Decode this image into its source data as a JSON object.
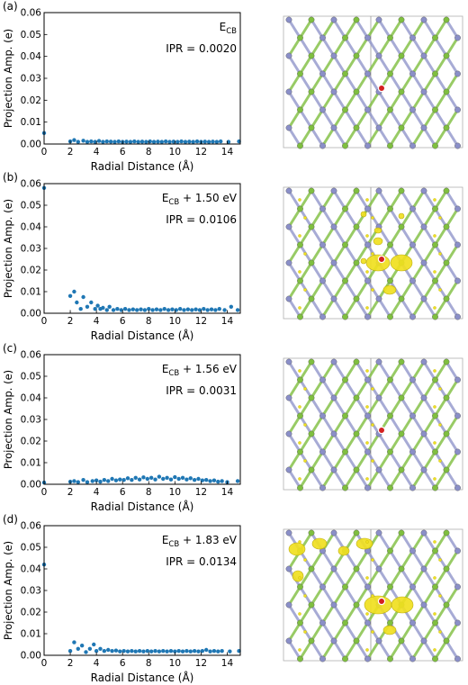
{
  "figure": {
    "panels": [
      {
        "letter": "(a)",
        "energy_main": "E",
        "energy_sub": "CB",
        "energy_suffix": "",
        "ipr": "IPR = 0.0020"
      },
      {
        "letter": "(b)",
        "energy_main": "E",
        "energy_sub": "CB",
        "energy_suffix": " + 1.50 eV",
        "ipr": "IPR = 0.0106"
      },
      {
        "letter": "(c)",
        "energy_main": "E",
        "energy_sub": "CB",
        "energy_suffix": " + 1.56 eV",
        "ipr": "IPR = 0.0031"
      },
      {
        "letter": "(d)",
        "energy_main": "E",
        "energy_sub": "CB",
        "energy_suffix": " + 1.83 eV",
        "ipr": "IPR = 0.0134"
      }
    ],
    "xlabel": "Radial Distance (Å)",
    "ylabel": "Projection Amp. (e)",
    "colors": {
      "points": "#1f77b4",
      "si": "#7fbf3f",
      "n": "#8a8fc8",
      "isosurface": "#f0e020",
      "defect": "#d42020"
    }
  },
  "chart_data": [
    {
      "type": "scatter",
      "panel": "(a)",
      "xlim": [
        0,
        15
      ],
      "ylim": [
        0,
        0.06
      ],
      "xticks": [
        0,
        2,
        4,
        6,
        8,
        10,
        12,
        14
      ],
      "yticks": [
        0.0,
        0.01,
        0.02,
        0.03,
        0.04,
        0.05,
        0.06
      ],
      "x": [
        0.0,
        2.0,
        2.3,
        2.6,
        3.0,
        3.3,
        3.6,
        3.9,
        4.2,
        4.5,
        4.8,
        5.1,
        5.4,
        5.7,
        6.0,
        6.3,
        6.6,
        6.9,
        7.2,
        7.5,
        7.8,
        8.1,
        8.4,
        8.7,
        9.0,
        9.3,
        9.6,
        9.9,
        10.2,
        10.5,
        10.8,
        11.1,
        11.4,
        11.7,
        12.0,
        12.3,
        12.6,
        12.9,
        13.2,
        13.5,
        14.1,
        14.9
      ],
      "y": [
        0.005,
        0.0012,
        0.0018,
        0.001,
        0.0015,
        0.001,
        0.0012,
        0.001,
        0.0014,
        0.001,
        0.0012,
        0.0011,
        0.001,
        0.0012,
        0.001,
        0.0011,
        0.001,
        0.0012,
        0.001,
        0.0011,
        0.001,
        0.0012,
        0.001,
        0.0011,
        0.001,
        0.0012,
        0.001,
        0.0011,
        0.001,
        0.0012,
        0.001,
        0.0011,
        0.001,
        0.0012,
        0.001,
        0.0011,
        0.001,
        0.0011,
        0.001,
        0.0012,
        0.001,
        0.0012
      ]
    },
    {
      "type": "scatter",
      "panel": "(b)",
      "xlim": [
        0,
        15
      ],
      "ylim": [
        0,
        0.06
      ],
      "xticks": [
        0,
        2,
        4,
        6,
        8,
        10,
        12,
        14
      ],
      "yticks": [
        0.0,
        0.01,
        0.02,
        0.03,
        0.04,
        0.05,
        0.06
      ],
      "x": [
        0.0,
        2.0,
        2.3,
        2.5,
        2.8,
        3.0,
        3.3,
        3.6,
        3.9,
        4.1,
        4.3,
        4.5,
        4.8,
        5.0,
        5.3,
        5.6,
        5.9,
        6.2,
        6.5,
        6.8,
        7.1,
        7.4,
        7.7,
        8.0,
        8.3,
        8.6,
        8.9,
        9.2,
        9.5,
        9.8,
        10.1,
        10.4,
        10.7,
        11.0,
        11.3,
        11.6,
        11.9,
        12.2,
        12.5,
        12.8,
        13.1,
        13.4,
        13.8,
        14.3,
        14.8
      ],
      "y": [
        0.058,
        0.008,
        0.01,
        0.005,
        0.002,
        0.0075,
        0.003,
        0.005,
        0.002,
        0.0035,
        0.002,
        0.0025,
        0.0015,
        0.003,
        0.0015,
        0.002,
        0.0015,
        0.002,
        0.0015,
        0.0018,
        0.0015,
        0.0018,
        0.0015,
        0.002,
        0.0015,
        0.0018,
        0.0015,
        0.002,
        0.0015,
        0.0018,
        0.0015,
        0.002,
        0.0015,
        0.0018,
        0.0015,
        0.0018,
        0.0015,
        0.002,
        0.0015,
        0.0018,
        0.0015,
        0.002,
        0.0015,
        0.003,
        0.0015
      ]
    },
    {
      "type": "scatter",
      "panel": "(c)",
      "xlim": [
        0,
        15
      ],
      "ylim": [
        0,
        0.06
      ],
      "xticks": [
        0,
        2,
        4,
        6,
        8,
        10,
        12,
        14
      ],
      "yticks": [
        0.0,
        0.01,
        0.02,
        0.03,
        0.04,
        0.05,
        0.06
      ],
      "x": [
        0.0,
        2.0,
        2.3,
        2.6,
        3.0,
        3.3,
        3.7,
        4.0,
        4.3,
        4.6,
        4.9,
        5.2,
        5.5,
        5.8,
        6.1,
        6.4,
        6.7,
        7.0,
        7.3,
        7.6,
        7.9,
        8.2,
        8.5,
        8.8,
        9.1,
        9.4,
        9.7,
        10.0,
        10.3,
        10.6,
        10.9,
        11.2,
        11.5,
        11.8,
        12.1,
        12.4,
        12.7,
        13.0,
        13.3,
        13.6,
        14.0,
        14.8
      ],
      "y": [
        0.0008,
        0.0012,
        0.0015,
        0.001,
        0.002,
        0.001,
        0.0015,
        0.0018,
        0.0012,
        0.002,
        0.0015,
        0.0025,
        0.0018,
        0.0022,
        0.002,
        0.0028,
        0.002,
        0.003,
        0.0022,
        0.0032,
        0.0025,
        0.003,
        0.0022,
        0.0035,
        0.0025,
        0.003,
        0.0022,
        0.0033,
        0.0025,
        0.003,
        0.0022,
        0.0028,
        0.002,
        0.0025,
        0.0018,
        0.002,
        0.0015,
        0.0018,
        0.0012,
        0.0015,
        0.001,
        0.0015
      ]
    },
    {
      "type": "scatter",
      "panel": "(d)",
      "xlim": [
        0,
        15
      ],
      "ylim": [
        0,
        0.06
      ],
      "xticks": [
        0,
        2,
        4,
        6,
        8,
        10,
        12,
        14
      ],
      "yticks": [
        0.0,
        0.01,
        0.02,
        0.03,
        0.04,
        0.05,
        0.06
      ],
      "x": [
        0.0,
        2.0,
        2.3,
        2.6,
        2.9,
        3.2,
        3.5,
        3.8,
        4.0,
        4.3,
        4.6,
        4.9,
        5.2,
        5.5,
        5.8,
        6.1,
        6.4,
        6.7,
        7.0,
        7.3,
        7.6,
        7.9,
        8.2,
        8.5,
        8.8,
        9.1,
        9.4,
        9.7,
        10.0,
        10.3,
        10.6,
        10.9,
        11.2,
        11.5,
        11.8,
        12.1,
        12.4,
        12.7,
        13.0,
        13.3,
        13.6,
        14.2,
        14.9
      ],
      "y": [
        0.042,
        0.002,
        0.006,
        0.003,
        0.0045,
        0.0015,
        0.003,
        0.005,
        0.002,
        0.003,
        0.002,
        0.0025,
        0.002,
        0.0022,
        0.0018,
        0.002,
        0.0018,
        0.002,
        0.0018,
        0.002,
        0.0018,
        0.002,
        0.0018,
        0.002,
        0.0018,
        0.002,
        0.0018,
        0.002,
        0.0018,
        0.002,
        0.0018,
        0.002,
        0.0018,
        0.002,
        0.0018,
        0.002,
        0.0025,
        0.0018,
        0.002,
        0.0018,
        0.002,
        0.0018,
        0.002
      ]
    }
  ]
}
